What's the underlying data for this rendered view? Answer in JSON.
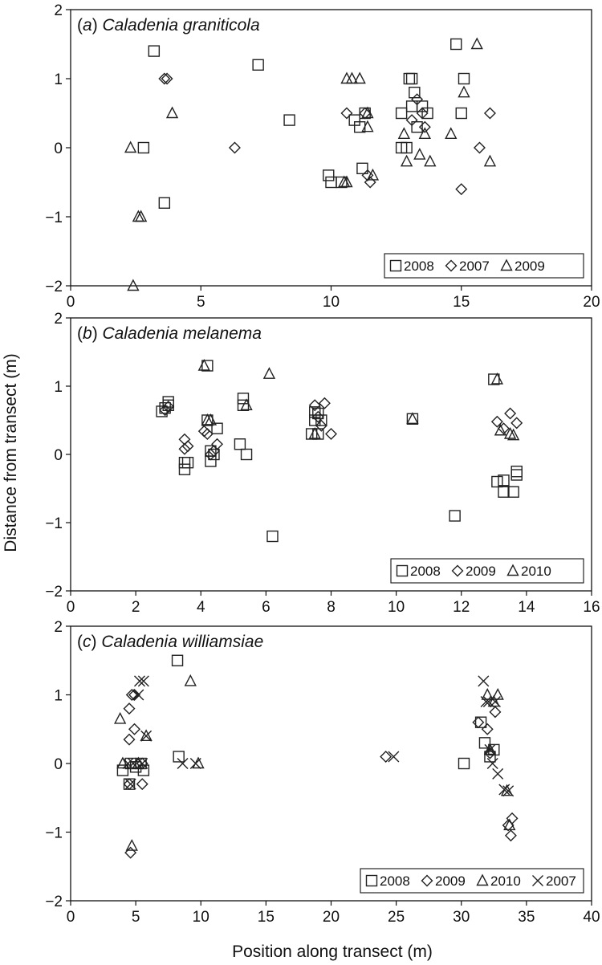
{
  "figure": {
    "shared_ylabel": "Distance from transect (m)",
    "shared_xlabel": "Position along transect (m)"
  },
  "chart_data": [
    {
      "type": "scatter",
      "panel_letter": "a",
      "species": "Caladenia graniticola",
      "xlim": [
        0,
        20
      ],
      "ylim": [
        -2,
        2
      ],
      "xticks": [
        0,
        5,
        10,
        15,
        20
      ],
      "yticks": [
        -2,
        -1,
        0,
        1,
        2
      ],
      "legend_position": "bottom-right",
      "series": [
        {
          "name": "2008",
          "marker": "square",
          "points": [
            [
              3.2,
              1.4
            ],
            [
              2.8,
              0.0
            ],
            [
              3.6,
              -0.8
            ],
            [
              7.2,
              1.2
            ],
            [
              8.4,
              0.4
            ],
            [
              9.9,
              -0.4
            ],
            [
              10.0,
              -0.5
            ],
            [
              10.4,
              -0.5
            ],
            [
              10.9,
              0.4
            ],
            [
              11.1,
              0.3
            ],
            [
              11.3,
              0.5
            ],
            [
              11.2,
              -0.3
            ],
            [
              12.7,
              0.0
            ],
            [
              12.9,
              0.0
            ],
            [
              12.7,
              0.5
            ],
            [
              13.0,
              1.0
            ],
            [
              13.1,
              1.0
            ],
            [
              13.2,
              0.8
            ],
            [
              13.1,
              0.6
            ],
            [
              13.3,
              0.3
            ],
            [
              13.5,
              0.6
            ],
            [
              13.7,
              0.5
            ],
            [
              14.8,
              1.5
            ],
            [
              15.1,
              1.0
            ],
            [
              15.0,
              0.5
            ]
          ]
        },
        {
          "name": "2007",
          "marker": "diamond",
          "points": [
            [
              3.6,
              1.0
            ],
            [
              3.7,
              1.0
            ],
            [
              6.3,
              0.0
            ],
            [
              10.6,
              0.5
            ],
            [
              11.3,
              0.5
            ],
            [
              11.4,
              -0.4
            ],
            [
              11.5,
              -0.5
            ],
            [
              13.1,
              0.4
            ],
            [
              13.3,
              0.7
            ],
            [
              13.5,
              0.5
            ],
            [
              13.6,
              0.3
            ],
            [
              15.0,
              -0.6
            ],
            [
              15.7,
              0.0
            ],
            [
              16.1,
              0.5
            ]
          ]
        },
        {
          "name": "2009",
          "marker": "triangle",
          "points": [
            [
              2.4,
              -2.0
            ],
            [
              2.6,
              -1.0
            ],
            [
              2.7,
              -1.0
            ],
            [
              2.3,
              0.0
            ],
            [
              3.9,
              0.5
            ],
            [
              10.6,
              1.0
            ],
            [
              10.8,
              1.0
            ],
            [
              11.1,
              1.0
            ],
            [
              10.5,
              -0.5
            ],
            [
              10.6,
              -0.5
            ],
            [
              11.4,
              0.5
            ],
            [
              11.4,
              0.3
            ],
            [
              11.6,
              -0.4
            ],
            [
              12.8,
              0.2
            ],
            [
              12.9,
              -0.2
            ],
            [
              13.4,
              -0.1
            ],
            [
              13.6,
              0.2
            ],
            [
              13.8,
              -0.2
            ],
            [
              14.6,
              0.2
            ],
            [
              15.1,
              0.8
            ],
            [
              15.6,
              1.5
            ],
            [
              16.1,
              -0.2
            ]
          ]
        }
      ]
    },
    {
      "type": "scatter",
      "panel_letter": "b",
      "species": "Caladenia melanema",
      "xlim": [
        0,
        16
      ],
      "ylim": [
        -2,
        2
      ],
      "xticks": [
        0,
        2,
        4,
        6,
        8,
        10,
        12,
        14,
        16
      ],
      "yticks": [
        -2,
        -1,
        0,
        1,
        2
      ],
      "legend_position": "bottom-right",
      "series": [
        {
          "name": "2008",
          "marker": "square",
          "points": [
            [
              2.8,
              0.63
            ],
            [
              2.9,
              0.68
            ],
            [
              3.0,
              0.72
            ],
            [
              3.0,
              0.77
            ],
            [
              3.5,
              -0.22
            ],
            [
              3.5,
              -0.12
            ],
            [
              3.6,
              -0.12
            ],
            [
              4.2,
              1.3
            ],
            [
              4.2,
              0.5
            ],
            [
              4.3,
              0.05
            ],
            [
              4.4,
              0.0
            ],
            [
              4.3,
              -0.1
            ],
            [
              4.5,
              0.38
            ],
            [
              5.3,
              0.82
            ],
            [
              5.3,
              0.72
            ],
            [
              5.2,
              0.15
            ],
            [
              5.4,
              0.0
            ],
            [
              6.2,
              -1.2
            ],
            [
              7.5,
              0.62
            ],
            [
              7.5,
              0.5
            ],
            [
              7.6,
              0.6
            ],
            [
              7.7,
              0.5
            ],
            [
              7.4,
              0.3
            ],
            [
              7.6,
              0.3
            ],
            [
              10.5,
              0.52
            ],
            [
              11.8,
              -0.9
            ],
            [
              13.0,
              1.1
            ],
            [
              13.1,
              -0.4
            ],
            [
              13.3,
              -0.38
            ],
            [
              13.3,
              -0.55
            ],
            [
              13.6,
              -0.55
            ],
            [
              13.7,
              -0.25
            ],
            [
              13.7,
              -0.3
            ]
          ]
        },
        {
          "name": "2009",
          "marker": "diamond",
          "points": [
            [
              2.9,
              0.65
            ],
            [
              3.0,
              0.7
            ],
            [
              3.5,
              0.22
            ],
            [
              3.5,
              0.08
            ],
            [
              3.6,
              0.12
            ],
            [
              4.1,
              0.34
            ],
            [
              4.2,
              0.3
            ],
            [
              4.3,
              0.0
            ],
            [
              4.4,
              0.05
            ],
            [
              4.5,
              0.15
            ],
            [
              7.5,
              0.72
            ],
            [
              7.6,
              0.55
            ],
            [
              7.7,
              0.42
            ],
            [
              7.8,
              0.75
            ],
            [
              8.0,
              0.3
            ],
            [
              13.1,
              0.48
            ],
            [
              13.5,
              0.6
            ],
            [
              13.3,
              0.38
            ],
            [
              13.7,
              0.46
            ]
          ]
        },
        {
          "name": "2010",
          "marker": "triangle",
          "points": [
            [
              4.1,
              1.3
            ],
            [
              4.2,
              0.5
            ],
            [
              4.3,
              0.5
            ],
            [
              5.4,
              0.72
            ],
            [
              6.1,
              1.18
            ],
            [
              7.5,
              0.3
            ],
            [
              10.5,
              0.52
            ],
            [
              13.1,
              1.1
            ],
            [
              13.2,
              0.35
            ],
            [
              13.5,
              0.3
            ],
            [
              13.6,
              0.28
            ]
          ]
        }
      ]
    },
    {
      "type": "scatter",
      "panel_letter": "c",
      "species": "Caladenia williamsiae",
      "xlim": [
        0,
        40
      ],
      "ylim": [
        -2,
        2
      ],
      "xticks": [
        0,
        5,
        10,
        15,
        20,
        25,
        30,
        35,
        40
      ],
      "yticks": [
        -2,
        -1,
        0,
        1,
        2
      ],
      "legend_position": "bottom-right",
      "series": [
        {
          "name": "2008",
          "marker": "square",
          "points": [
            [
              4.0,
              -0.1
            ],
            [
              4.5,
              -0.3
            ],
            [
              4.6,
              0.0
            ],
            [
              5.0,
              -0.05
            ],
            [
              5.4,
              0.0
            ],
            [
              5.6,
              -0.1
            ],
            [
              8.2,
              1.5
            ],
            [
              8.3,
              0.1
            ],
            [
              30.2,
              0.0
            ],
            [
              31.5,
              0.6
            ],
            [
              31.8,
              0.3
            ],
            [
              32.2,
              0.1
            ],
            [
              32.5,
              0.2
            ]
          ]
        },
        {
          "name": "2009",
          "marker": "diamond",
          "points": [
            [
              4.5,
              0.35
            ],
            [
              4.7,
              1.0
            ],
            [
              4.9,
              1.0
            ],
            [
              4.5,
              0.8
            ],
            [
              4.9,
              0.5
            ],
            [
              4.6,
              -1.3
            ],
            [
              5.5,
              -0.3
            ],
            [
              5.5,
              0.0
            ],
            [
              4.5,
              -0.3
            ],
            [
              24.2,
              0.1
            ],
            [
              31.3,
              0.6
            ],
            [
              32.0,
              0.5
            ],
            [
              32.2,
              0.15
            ],
            [
              32.6,
              0.75
            ],
            [
              33.6,
              -0.9
            ],
            [
              33.8,
              -1.05
            ],
            [
              33.9,
              -0.8
            ]
          ]
        },
        {
          "name": "2010",
          "marker": "triangle",
          "points": [
            [
              3.8,
              0.65
            ],
            [
              4.0,
              0.0
            ],
            [
              4.7,
              -1.2
            ],
            [
              5.2,
              0.0
            ],
            [
              5.8,
              0.4
            ],
            [
              9.2,
              1.2
            ],
            [
              9.8,
              0.0
            ],
            [
              32.0,
              1.0
            ],
            [
              32.5,
              0.9
            ],
            [
              32.8,
              1.0
            ],
            [
              32.2,
              0.2
            ],
            [
              33.5,
              -0.4
            ],
            [
              33.7,
              -0.9
            ]
          ]
        },
        {
          "name": "2007",
          "marker": "x",
          "points": [
            [
              4.4,
              0.0
            ],
            [
              4.6,
              -0.3
            ],
            [
              4.8,
              0.0
            ],
            [
              5.2,
              1.0
            ],
            [
              5.3,
              1.2
            ],
            [
              5.6,
              1.2
            ],
            [
              5.5,
              0.0
            ],
            [
              5.8,
              0.4
            ],
            [
              8.6,
              0.0
            ],
            [
              9.6,
              0.0
            ],
            [
              24.8,
              0.1
            ],
            [
              31.7,
              1.2
            ],
            [
              31.9,
              0.9
            ],
            [
              32.1,
              0.9
            ],
            [
              32.2,
              0.2
            ],
            [
              32.4,
              0.0
            ],
            [
              32.6,
              0.9
            ],
            [
              32.8,
              -0.15
            ],
            [
              33.3,
              -0.38
            ],
            [
              33.6,
              -0.4
            ]
          ]
        }
      ]
    }
  ]
}
